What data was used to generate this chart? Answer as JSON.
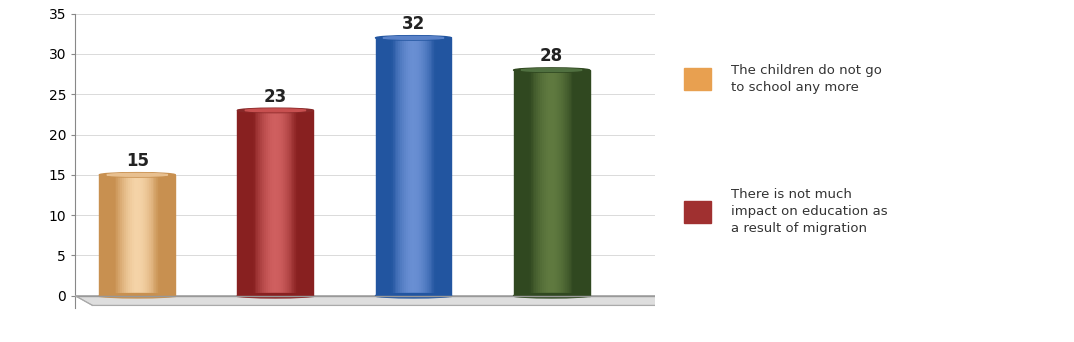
{
  "values": [
    15,
    23,
    32,
    28
  ],
  "bar_colors_main": [
    "#E8B87A",
    "#B84040",
    "#4472C4",
    "#4B6B2A"
  ],
  "bar_colors_light": [
    "#F5D4A8",
    "#D06060",
    "#6A90D4",
    "#607A40"
  ],
  "bar_colors_dark": [
    "#C89050",
    "#882020",
    "#2255A0",
    "#304820"
  ],
  "bar_colors_top_outer": [
    "#C89050",
    "#882828",
    "#2255A0",
    "#304820"
  ],
  "bar_colors_top_inner": [
    "#E8C090",
    "#C85050",
    "#5A82C8",
    "#507040"
  ],
  "value_labels": [
    "15",
    "23",
    "32",
    "28"
  ],
  "ylim": [
    0,
    35
  ],
  "yticks": [
    0,
    5,
    10,
    15,
    20,
    25,
    30,
    35
  ],
  "background_color": "#FFFFFF",
  "legend_labels": [
    "The children do not go\nto school any more",
    "There is not much\nimpact on education as\na result of migration"
  ],
  "legend_colors": [
    "#E8A050",
    "#A03030"
  ],
  "value_fontsize": 12,
  "bar_width": 0.55,
  "bar_positions": [
    1,
    2,
    3,
    4
  ],
  "floor_color": "#D8D8D8",
  "floor_edge_color": "#AAAAAA"
}
